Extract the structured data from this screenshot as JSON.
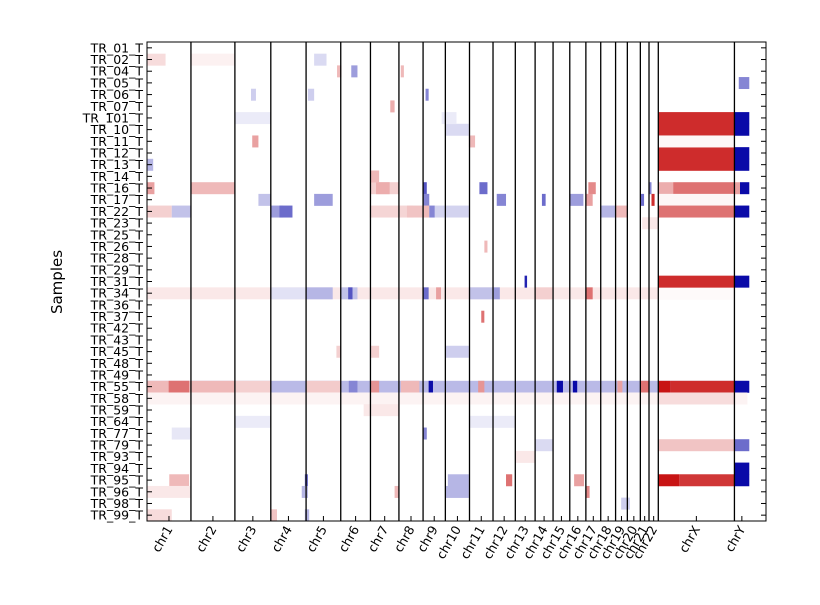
{
  "chart_data": {
    "type": "heatmap",
    "title": "",
    "xlabel": "",
    "ylabel": "Samples",
    "grid": false,
    "legend": "none",
    "colormap": {
      "low": "#0a0aa8",
      "mid": "#ffffff",
      "high": "#c81414"
    },
    "value_range": [
      -1,
      1
    ],
    "samples": [
      "TR_01_T",
      "TR_02_T",
      "TR_04_T",
      "TR_05_T",
      "TR_06_T",
      "TR_07_T",
      "TR_101_T",
      "TR_10_T",
      "TR_11_T",
      "TR_12_T",
      "TR_13_T",
      "TR_14_T",
      "TR_16_T",
      "TR_17_T",
      "TR_22_T",
      "TR_23_T",
      "TR_25_T",
      "TR_26_T",
      "TR_28_T",
      "TR_29_T",
      "TR_31_T",
      "TR_34_T",
      "TR_36_T",
      "TR_37_T",
      "TR_42_T",
      "TR_43_T",
      "TR_45_T",
      "TR_48_T",
      "TR_49_T",
      "TR_55_T",
      "TR_58_T",
      "TR_59_T",
      "TR_64_T",
      "TR_77_T",
      "TR_79_T",
      "TR_93_T",
      "TR_94_T",
      "TR_95_T",
      "TR_96_T",
      "TR_98_T",
      "TR_99_T"
    ],
    "chromosomes": [
      "chr1",
      "chr2",
      "chr3",
      "chr4",
      "chr5",
      "chr6",
      "chr7",
      "chr8",
      "chr9",
      "chr10",
      "chr11",
      "chr12",
      "chr13",
      "chr14",
      "chr15",
      "chr16",
      "chr17",
      "chr18",
      "chr19",
      "chr20",
      "chr21",
      "chr22",
      "chrX",
      "chrY"
    ],
    "chromosome_spans": [
      [
        0,
        0.071
      ],
      [
        0.071,
        0.142
      ],
      [
        0.142,
        0.2
      ],
      [
        0.2,
        0.257
      ],
      [
        0.257,
        0.313
      ],
      [
        0.313,
        0.361
      ],
      [
        0.361,
        0.407
      ],
      [
        0.407,
        0.446
      ],
      [
        0.446,
        0.482
      ],
      [
        0.482,
        0.521
      ],
      [
        0.521,
        0.559
      ],
      [
        0.559,
        0.595
      ],
      [
        0.595,
        0.627
      ],
      [
        0.627,
        0.656
      ],
      [
        0.656,
        0.683
      ],
      [
        0.683,
        0.709
      ],
      [
        0.709,
        0.733
      ],
      [
        0.733,
        0.757
      ],
      [
        0.757,
        0.776
      ],
      [
        0.776,
        0.797
      ],
      [
        0.797,
        0.811
      ],
      [
        0.811,
        0.826
      ],
      [
        0.826,
        0.949
      ],
      [
        0.949,
        0.973
      ]
    ],
    "segments": [
      {
        "sample": "TR_55_T",
        "start": 0.0,
        "end": 0.97,
        "value": -0.28
      },
      {
        "sample": "TR_55_T",
        "start": 0.0,
        "end": 0.142,
        "value": 0.3
      },
      {
        "sample": "TR_55_T",
        "start": 0.035,
        "end": 0.068,
        "value": 0.6
      },
      {
        "sample": "TR_55_T",
        "start": 0.142,
        "end": 0.2,
        "value": 0.2
      },
      {
        "sample": "TR_55_T",
        "start": 0.257,
        "end": 0.313,
        "value": 0.22
      },
      {
        "sample": "TR_55_T",
        "start": 0.326,
        "end": 0.34,
        "value": -0.5
      },
      {
        "sample": "TR_55_T",
        "start": 0.361,
        "end": 0.375,
        "value": 0.45
      },
      {
        "sample": "TR_55_T",
        "start": 0.41,
        "end": 0.44,
        "value": 0.3
      },
      {
        "sample": "TR_55_T",
        "start": 0.455,
        "end": 0.462,
        "value": -1
      },
      {
        "sample": "TR_55_T",
        "start": 0.535,
        "end": 0.545,
        "value": 0.45
      },
      {
        "sample": "TR_55_T",
        "start": 0.662,
        "end": 0.672,
        "value": -1
      },
      {
        "sample": "TR_55_T",
        "start": 0.688,
        "end": 0.695,
        "value": -1
      },
      {
        "sample": "TR_55_T",
        "start": 0.76,
        "end": 0.768,
        "value": 0.4
      },
      {
        "sample": "TR_55_T",
        "start": 0.797,
        "end": 0.811,
        "value": 0.6
      },
      {
        "sample": "TR_55_T",
        "start": 0.826,
        "end": 0.845,
        "value": 1
      },
      {
        "sample": "TR_55_T",
        "start": 0.845,
        "end": 0.949,
        "value": 0.9
      },
      {
        "sample": "TR_55_T",
        "start": 0.949,
        "end": 0.973,
        "value": -1
      },
      {
        "sample": "TR_16_T",
        "start": 0.071,
        "end": 0.142,
        "value": 0.3
      },
      {
        "sample": "TR_16_T",
        "start": 0.0,
        "end": 0.012,
        "value": 0.4
      },
      {
        "sample": "TR_16_T",
        "start": 0.361,
        "end": 0.407,
        "value": 0.2
      },
      {
        "sample": "TR_16_T",
        "start": 0.37,
        "end": 0.392,
        "value": 0.35
      },
      {
        "sample": "TR_16_T",
        "start": 0.446,
        "end": 0.452,
        "value": -0.7
      },
      {
        "sample": "TR_16_T",
        "start": 0.537,
        "end": 0.55,
        "value": -0.6
      },
      {
        "sample": "TR_16_T",
        "start": 0.713,
        "end": 0.725,
        "value": 0.5
      },
      {
        "sample": "TR_16_T",
        "start": 0.811,
        "end": 0.815,
        "value": -0.5
      },
      {
        "sample": "TR_16_T",
        "start": 0.826,
        "end": 0.85,
        "value": 0.35
      },
      {
        "sample": "TR_16_T",
        "start": 0.85,
        "end": 0.949,
        "value": 0.6
      },
      {
        "sample": "TR_16_T",
        "start": 0.949,
        "end": 0.958,
        "value": 0.4
      },
      {
        "sample": "TR_16_T",
        "start": 0.958,
        "end": 0.973,
        "value": -1
      },
      {
        "sample": "TR_17_T",
        "start": 0.18,
        "end": 0.2,
        "value": -0.25
      },
      {
        "sample": "TR_17_T",
        "start": 0.27,
        "end": 0.3,
        "value": -0.4
      },
      {
        "sample": "TR_17_T",
        "start": 0.446,
        "end": 0.456,
        "value": -0.5
      },
      {
        "sample": "TR_17_T",
        "start": 0.565,
        "end": 0.58,
        "value": -0.5
      },
      {
        "sample": "TR_17_T",
        "start": 0.638,
        "end": 0.644,
        "value": -0.6
      },
      {
        "sample": "TR_17_T",
        "start": 0.683,
        "end": 0.705,
        "value": -0.4
      },
      {
        "sample": "TR_17_T",
        "start": 0.709,
        "end": 0.72,
        "value": 0.4
      },
      {
        "sample": "TR_17_T",
        "start": 0.797,
        "end": 0.803,
        "value": -0.6
      },
      {
        "sample": "TR_17_T",
        "start": 0.815,
        "end": 0.82,
        "value": 0.9
      },
      {
        "sample": "TR_17_T",
        "start": 0.826,
        "end": 0.949,
        "value": 0.04
      },
      {
        "sample": "TR_22_T",
        "start": 0.0,
        "end": 0.04,
        "value": 0.2
      },
      {
        "sample": "TR_22_T",
        "start": 0.04,
        "end": 0.071,
        "value": -0.25
      },
      {
        "sample": "TR_22_T",
        "start": 0.2,
        "end": 0.22,
        "value": -0.4
      },
      {
        "sample": "TR_22_T",
        "start": 0.214,
        "end": 0.235,
        "value": -0.6
      },
      {
        "sample": "TR_22_T",
        "start": 0.36,
        "end": 0.43,
        "value": 0.18
      },
      {
        "sample": "TR_22_T",
        "start": 0.42,
        "end": 0.446,
        "value": 0.25
      },
      {
        "sample": "TR_22_T",
        "start": 0.446,
        "end": 0.456,
        "value": 0.3
      },
      {
        "sample": "TR_22_T",
        "start": 0.456,
        "end": 0.465,
        "value": -0.5
      },
      {
        "sample": "TR_22_T",
        "start": 0.465,
        "end": 0.52,
        "value": -0.18
      },
      {
        "sample": "TR_22_T",
        "start": 0.733,
        "end": 0.757,
        "value": -0.3
      },
      {
        "sample": "TR_22_T",
        "start": 0.757,
        "end": 0.776,
        "value": 0.3
      },
      {
        "sample": "TR_22_T",
        "start": 0.826,
        "end": 0.949,
        "value": 0.6
      },
      {
        "sample": "TR_22_T",
        "start": 0.949,
        "end": 0.973,
        "value": -1
      },
      {
        "sample": "TR_34_T",
        "start": 0.0,
        "end": 0.95,
        "value": 0.1
      },
      {
        "sample": "TR_34_T",
        "start": 0.2,
        "end": 0.26,
        "value": -0.12
      },
      {
        "sample": "TR_34_T",
        "start": 0.257,
        "end": 0.3,
        "value": -0.3
      },
      {
        "sample": "TR_34_T",
        "start": 0.313,
        "end": 0.34,
        "value": -0.25
      },
      {
        "sample": "TR_34_T",
        "start": 0.325,
        "end": 0.332,
        "value": -0.7
      },
      {
        "sample": "TR_34_T",
        "start": 0.446,
        "end": 0.455,
        "value": -0.6
      },
      {
        "sample": "TR_34_T",
        "start": 0.467,
        "end": 0.475,
        "value": 0.4
      },
      {
        "sample": "TR_34_T",
        "start": 0.52,
        "end": 0.56,
        "value": -0.25
      },
      {
        "sample": "TR_34_T",
        "start": 0.56,
        "end": 0.57,
        "value": -0.4
      },
      {
        "sample": "TR_34_T",
        "start": 0.627,
        "end": 0.656,
        "value": 0.2
      },
      {
        "sample": "TR_34_T",
        "start": 0.709,
        "end": 0.72,
        "value": 0.6
      },
      {
        "sample": "TR_34_T",
        "start": 0.826,
        "end": 0.949,
        "value": 0.02
      },
      {
        "sample": "TR_95_T",
        "start": 0.036,
        "end": 0.068,
        "value": 0.3
      },
      {
        "sample": "TR_95_T",
        "start": 0.255,
        "end": 0.26,
        "value": -0.6
      },
      {
        "sample": "TR_95_T",
        "start": 0.486,
        "end": 0.52,
        "value": -0.3
      },
      {
        "sample": "TR_95_T",
        "start": 0.58,
        "end": 0.59,
        "value": 0.6
      },
      {
        "sample": "TR_95_T",
        "start": 0.69,
        "end": 0.706,
        "value": 0.4
      },
      {
        "sample": "TR_95_T",
        "start": 0.826,
        "end": 0.86,
        "value": 1
      },
      {
        "sample": "TR_95_T",
        "start": 0.86,
        "end": 0.949,
        "value": 0.85
      },
      {
        "sample": "TR_95_T",
        "start": 0.949,
        "end": 0.973,
        "value": -1
      },
      {
        "sample": "TR_101_T",
        "start": 0.826,
        "end": 0.949,
        "value": 0.9
      },
      {
        "sample": "TR_101_T",
        "start": 0.949,
        "end": 0.973,
        "value": -1
      },
      {
        "sample": "TR_10_T",
        "start": 0.826,
        "end": 0.949,
        "value": 0.9
      },
      {
        "sample": "TR_10_T",
        "start": 0.949,
        "end": 0.973,
        "value": -1
      },
      {
        "sample": "TR_10_T",
        "start": 0.482,
        "end": 0.52,
        "value": -0.15
      },
      {
        "sample": "TR_12_T",
        "start": 0.826,
        "end": 0.949,
        "value": 0.9
      },
      {
        "sample": "TR_12_T",
        "start": 0.949,
        "end": 0.973,
        "value": -1
      },
      {
        "sample": "TR_13_T",
        "start": 0.826,
        "end": 0.949,
        "value": 0.9
      },
      {
        "sample": "TR_13_T",
        "start": 0.949,
        "end": 0.973,
        "value": -1
      },
      {
        "sample": "TR_13_T",
        "start": 0.0,
        "end": 0.01,
        "value": -0.3
      },
      {
        "sample": "TR_31_T",
        "start": 0.826,
        "end": 0.949,
        "value": 0.9
      },
      {
        "sample": "TR_31_T",
        "start": 0.949,
        "end": 0.973,
        "value": -1
      },
      {
        "sample": "TR_31_T",
        "start": 0.61,
        "end": 0.614,
        "value": -0.9
      },
      {
        "sample": "TR_94_T",
        "start": 0.949,
        "end": 0.973,
        "value": -1
      },
      {
        "sample": "TR_05_T",
        "start": 0.956,
        "end": 0.973,
        "value": -0.5
      },
      {
        "sample": "TR_79_T",
        "start": 0.826,
        "end": 0.949,
        "value": 0.25
      },
      {
        "sample": "TR_79_T",
        "start": 0.949,
        "end": 0.973,
        "value": -0.6
      },
      {
        "sample": "TR_79_T",
        "start": 0.627,
        "end": 0.656,
        "value": -0.15
      },
      {
        "sample": "TR_11_T",
        "start": 0.17,
        "end": 0.18,
        "value": 0.4
      },
      {
        "sample": "TR_11_T",
        "start": 0.52,
        "end": 0.53,
        "value": 0.3
      },
      {
        "sample": "TR_11_T",
        "start": 0.826,
        "end": 0.949,
        "value": 0.04
      },
      {
        "sample": "TR_02_T",
        "start": 0.0,
        "end": 0.03,
        "value": 0.15
      },
      {
        "sample": "TR_02_T",
        "start": 0.071,
        "end": 0.142,
        "value": 0.06
      },
      {
        "sample": "TR_02_T",
        "start": 0.27,
        "end": 0.29,
        "value": -0.15
      },
      {
        "sample": "TR_04_T",
        "start": 0.307,
        "end": 0.314,
        "value": 0.3
      },
      {
        "sample": "TR_04_T",
        "start": 0.33,
        "end": 0.34,
        "value": -0.4
      },
      {
        "sample": "TR_04_T",
        "start": 0.41,
        "end": 0.415,
        "value": 0.3
      },
      {
        "sample": "TR_06_T",
        "start": 0.168,
        "end": 0.176,
        "value": -0.2
      },
      {
        "sample": "TR_06_T",
        "start": 0.26,
        "end": 0.27,
        "value": -0.2
      },
      {
        "sample": "TR_06_T",
        "start": 0.45,
        "end": 0.455,
        "value": -0.5
      },
      {
        "sample": "TR_07_T",
        "start": 0.393,
        "end": 0.4,
        "value": 0.35
      },
      {
        "sample": "TR_101_T",
        "start": 0.142,
        "end": 0.2,
        "value": -0.08
      },
      {
        "sample": "TR_101_T",
        "start": 0.476,
        "end": 0.5,
        "value": -0.08
      },
      {
        "sample": "TR_14_T",
        "start": 0.361,
        "end": 0.375,
        "value": 0.3
      },
      {
        "sample": "TR_23_T",
        "start": 0.8,
        "end": 0.826,
        "value": 0.1
      },
      {
        "sample": "TR_26_T",
        "start": 0.545,
        "end": 0.55,
        "value": 0.3
      },
      {
        "sample": "TR_37_T",
        "start": 0.54,
        "end": 0.545,
        "value": 0.6
      },
      {
        "sample": "TR_45_T",
        "start": 0.306,
        "end": 0.313,
        "value": 0.2
      },
      {
        "sample": "TR_45_T",
        "start": 0.361,
        "end": 0.375,
        "value": 0.2
      },
      {
        "sample": "TR_45_T",
        "start": 0.482,
        "end": 0.52,
        "value": -0.2
      },
      {
        "sample": "TR_58_T",
        "start": 0.0,
        "end": 0.97,
        "value": 0.05
      },
      {
        "sample": "TR_58_T",
        "start": 0.826,
        "end": 0.949,
        "value": 0.15
      },
      {
        "sample": "TR_59_T",
        "start": 0.35,
        "end": 0.407,
        "value": 0.1
      },
      {
        "sample": "TR_64_T",
        "start": 0.142,
        "end": 0.2,
        "value": -0.08
      },
      {
        "sample": "TR_64_T",
        "start": 0.52,
        "end": 0.595,
        "value": -0.08
      },
      {
        "sample": "TR_77_T",
        "start": 0.04,
        "end": 0.071,
        "value": -0.1
      },
      {
        "sample": "TR_77_T",
        "start": 0.446,
        "end": 0.452,
        "value": -0.5
      },
      {
        "sample": "TR_93_T",
        "start": 0.595,
        "end": 0.627,
        "value": 0.1
      },
      {
        "sample": "TR_96_T",
        "start": 0.0,
        "end": 0.07,
        "value": 0.1
      },
      {
        "sample": "TR_96_T",
        "start": 0.25,
        "end": 0.26,
        "value": -0.3
      },
      {
        "sample": "TR_96_T",
        "start": 0.4,
        "end": 0.407,
        "value": 0.3
      },
      {
        "sample": "TR_96_T",
        "start": 0.482,
        "end": 0.52,
        "value": -0.3
      },
      {
        "sample": "TR_96_T",
        "start": 0.709,
        "end": 0.715,
        "value": 0.5
      },
      {
        "sample": "TR_98_T",
        "start": 0.766,
        "end": 0.78,
        "value": -0.2
      },
      {
        "sample": "TR_99_T",
        "start": 0.0,
        "end": 0.04,
        "value": 0.15
      },
      {
        "sample": "TR_99_T",
        "start": 0.2,
        "end": 0.21,
        "value": 0.25
      },
      {
        "sample": "TR_99_T",
        "start": 0.255,
        "end": 0.262,
        "value": -0.3
      }
    ]
  }
}
